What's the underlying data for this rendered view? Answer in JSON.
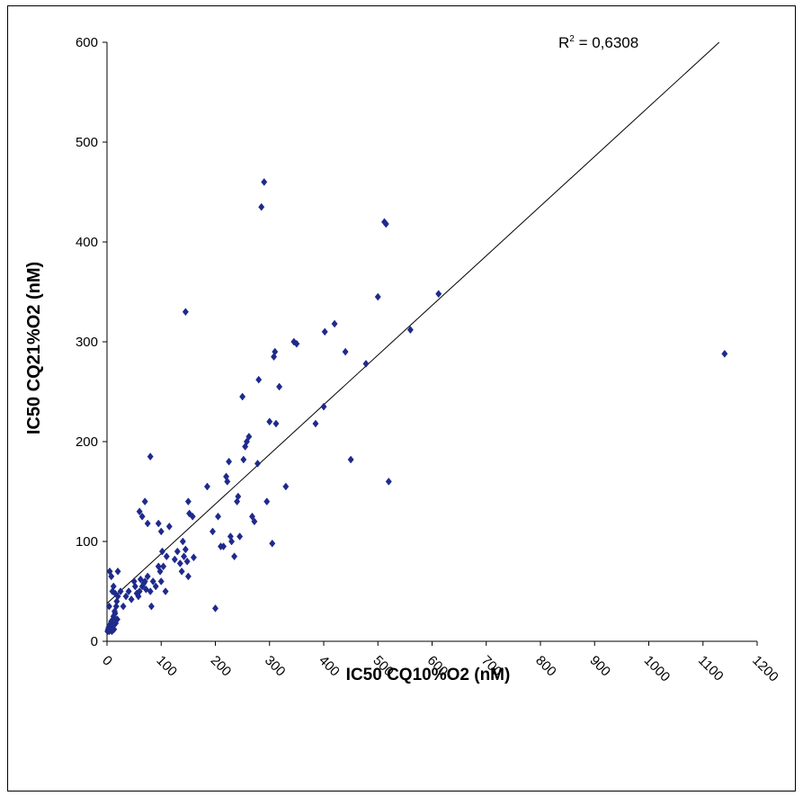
{
  "chart_data": {
    "type": "scatter",
    "title": "",
    "xlabel": "IC50 CQ10%O2 (nM)",
    "ylabel": "IC50 CQ21%O2 (nM)",
    "xlim": [
      0,
      1200
    ],
    "ylim": [
      0,
      600
    ],
    "x_ticks": [
      "0",
      "100",
      "200",
      "300",
      "400",
      "500",
      "600",
      "700",
      "800",
      "900",
      "1000",
      "1100",
      "1200"
    ],
    "y_ticks": [
      "0",
      "100",
      "200",
      "300",
      "400",
      "500",
      "600"
    ],
    "grid": false,
    "legend": "none",
    "marker_color": "#1f2a8c",
    "trendline": {
      "type": "linear",
      "x": [
        0,
        1130
      ],
      "y": [
        38,
        600
      ],
      "r2_prefix": "R",
      "r2_exponent": "2",
      "r2_value": " = 0,6308"
    },
    "series": [
      {
        "points": [
          [
            1,
            10
          ],
          [
            2,
            12
          ],
          [
            3,
            14
          ],
          [
            4,
            10
          ],
          [
            5,
            16
          ],
          [
            6,
            12
          ],
          [
            7,
            18
          ],
          [
            8,
            20
          ],
          [
            9,
            10
          ],
          [
            10,
            15
          ],
          [
            11,
            22
          ],
          [
            12,
            25
          ],
          [
            13,
            12
          ],
          [
            14,
            30
          ],
          [
            15,
            28
          ],
          [
            16,
            18
          ],
          [
            17,
            35
          ],
          [
            18,
            40
          ],
          [
            19,
            22
          ],
          [
            20,
            45
          ],
          [
            4,
            35
          ],
          [
            5,
            70
          ],
          [
            8,
            65
          ],
          [
            10,
            50
          ],
          [
            12,
            55
          ],
          [
            15,
            48
          ],
          [
            20,
            70
          ],
          [
            25,
            50
          ],
          [
            30,
            35
          ],
          [
            35,
            45
          ],
          [
            40,
            50
          ],
          [
            45,
            42
          ],
          [
            50,
            60
          ],
          [
            52,
            55
          ],
          [
            55,
            48
          ],
          [
            58,
            45
          ],
          [
            60,
            50
          ],
          [
            62,
            62
          ],
          [
            65,
            55
          ],
          [
            68,
            58
          ],
          [
            70,
            60
          ],
          [
            72,
            52
          ],
          [
            75,
            65
          ],
          [
            80,
            50
          ],
          [
            82,
            35
          ],
          [
            85,
            60
          ],
          [
            90,
            55
          ],
          [
            95,
            75
          ],
          [
            98,
            70
          ],
          [
            100,
            60
          ],
          [
            102,
            90
          ],
          [
            104,
            75
          ],
          [
            108,
            50
          ],
          [
            110,
            85
          ],
          [
            115,
            115
          ],
          [
            60,
            130
          ],
          [
            65,
            125
          ],
          [
            70,
            140
          ],
          [
            75,
            118
          ],
          [
            80,
            185
          ],
          [
            95,
            118
          ],
          [
            100,
            110
          ],
          [
            125,
            82
          ],
          [
            130,
            90
          ],
          [
            135,
            78
          ],
          [
            138,
            70
          ],
          [
            140,
            100
          ],
          [
            142,
            85
          ],
          [
            145,
            92
          ],
          [
            148,
            80
          ],
          [
            150,
            65
          ],
          [
            150,
            140
          ],
          [
            152,
            128
          ],
          [
            158,
            125
          ],
          [
            160,
            84
          ],
          [
            145,
            330
          ],
          [
            185,
            155
          ],
          [
            195,
            110
          ],
          [
            200,
            33
          ],
          [
            205,
            125
          ],
          [
            210,
            95
          ],
          [
            215,
            95
          ],
          [
            220,
            165
          ],
          [
            222,
            160
          ],
          [
            225,
            180
          ],
          [
            228,
            105
          ],
          [
            230,
            100
          ],
          [
            235,
            85
          ],
          [
            240,
            140
          ],
          [
            242,
            145
          ],
          [
            245,
            105
          ],
          [
            250,
            245
          ],
          [
            252,
            182
          ],
          [
            255,
            195
          ],
          [
            258,
            200
          ],
          [
            262,
            205
          ],
          [
            268,
            125
          ],
          [
            272,
            120
          ],
          [
            278,
            178
          ],
          [
            280,
            262
          ],
          [
            285,
            435
          ],
          [
            290,
            460
          ],
          [
            295,
            140
          ],
          [
            300,
            220
          ],
          [
            305,
            98
          ],
          [
            308,
            285
          ],
          [
            310,
            290
          ],
          [
            312,
            218
          ],
          [
            318,
            255
          ],
          [
            330,
            155
          ],
          [
            345,
            300
          ],
          [
            350,
            298
          ],
          [
            385,
            218
          ],
          [
            400,
            235
          ],
          [
            402,
            310
          ],
          [
            420,
            318
          ],
          [
            440,
            290
          ],
          [
            450,
            182
          ],
          [
            478,
            278
          ],
          [
            500,
            345
          ],
          [
            512,
            420
          ],
          [
            515,
            418
          ],
          [
            520,
            160
          ],
          [
            560,
            312
          ],
          [
            612,
            348
          ],
          [
            1140,
            288
          ]
        ]
      }
    ]
  }
}
